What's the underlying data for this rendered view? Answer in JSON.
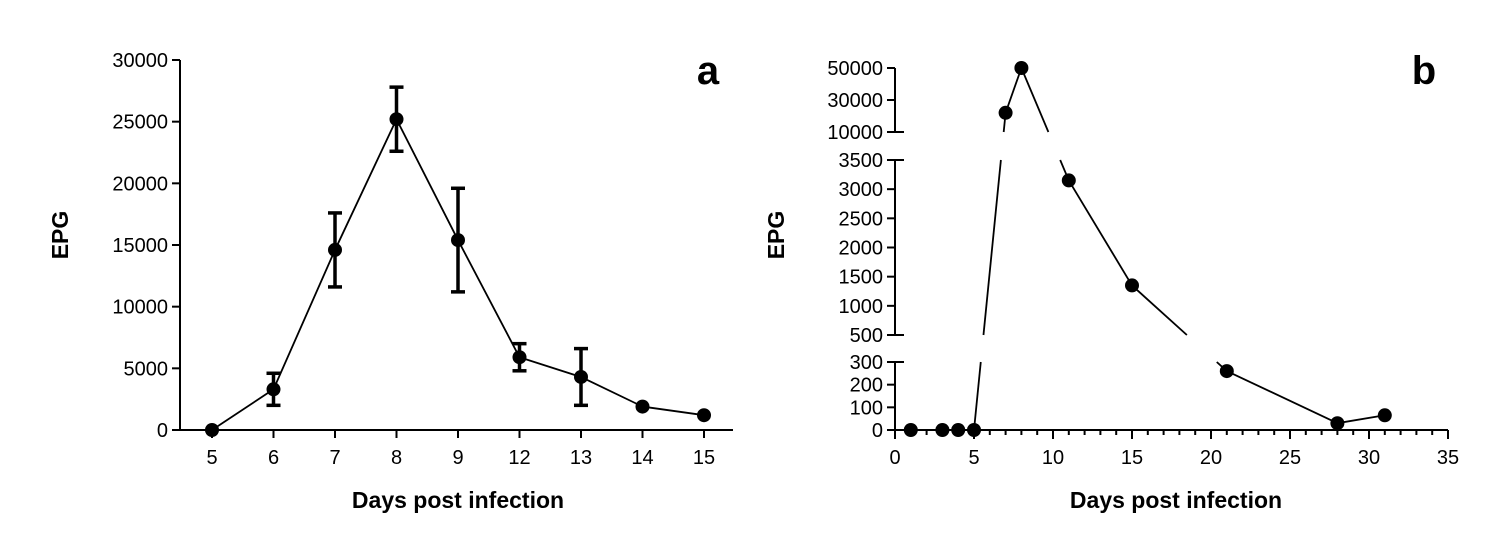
{
  "chart_data": [
    {
      "panel": "a",
      "type": "line",
      "xlabel": "Days post infection",
      "ylabel": "EPG",
      "x_scale": "categorical",
      "categories": [
        "5",
        "6",
        "7",
        "8",
        "9",
        "12",
        "13",
        "14",
        "15"
      ],
      "values": [
        0,
        3300,
        14600,
        25200,
        15400,
        5900,
        4300,
        1900,
        1200
      ],
      "error": [
        0,
        1300,
        3000,
        2600,
        4200,
        1100,
        2300,
        0,
        0
      ],
      "ylim": [
        0,
        30000
      ],
      "yticks": [
        0,
        5000,
        10000,
        15000,
        20000,
        25000,
        30000
      ],
      "grid": false,
      "error_bars": true
    },
    {
      "panel": "b",
      "type": "line",
      "xlabel": "Days post infection",
      "ylabel": "EPG",
      "x_scale": "linear",
      "xlim": [
        0,
        35
      ],
      "xticks": [
        0,
        5,
        10,
        15,
        20,
        25,
        30,
        35
      ],
      "x": [
        1,
        3,
        4,
        5,
        7,
        8,
        11,
        15,
        21,
        28,
        31
      ],
      "values": [
        0,
        0,
        0,
        0,
        22000,
        50000,
        3150,
        1350,
        260,
        30,
        65
      ],
      "y_axis_broken": true,
      "y_segments": [
        {
          "range": [
            0,
            300
          ],
          "ticks": [
            0,
            100,
            200,
            300
          ]
        },
        {
          "range": [
            500,
            3500
          ],
          "ticks": [
            500,
            1000,
            1500,
            2000,
            2500,
            3000,
            3500
          ]
        },
        {
          "range": [
            10000,
            50000
          ],
          "ticks": [
            10000,
            30000,
            50000
          ]
        }
      ],
      "grid": false
    }
  ]
}
